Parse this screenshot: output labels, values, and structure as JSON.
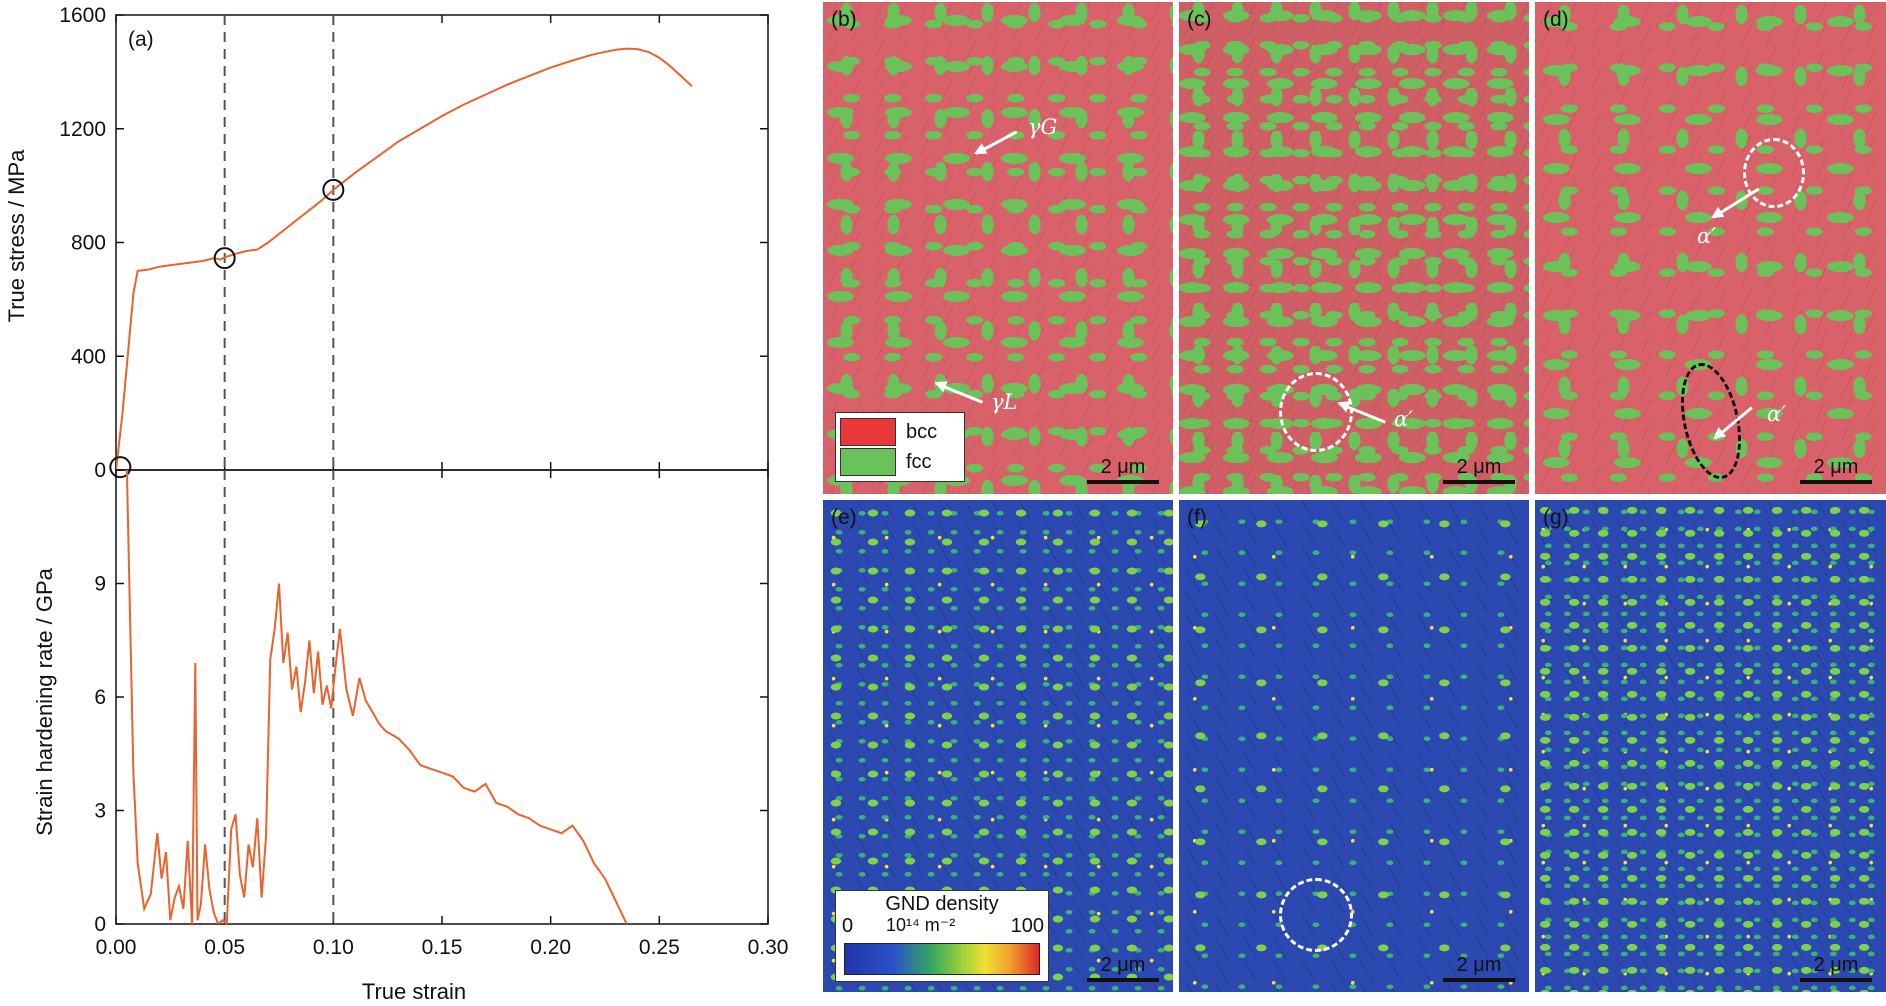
{
  "chart_data": [
    {
      "type": "line",
      "panel": "(a)",
      "ylabel": "True stress / MPa",
      "xlabel": "",
      "ylim": [
        0,
        1600
      ],
      "xlim": [
        0,
        0.3
      ],
      "yticks": [
        "0",
        "400",
        "800",
        "1200",
        "1600"
      ],
      "series": [
        {
          "x": [
            0.0,
            0.003,
            0.006,
            0.008,
            0.01,
            0.015,
            0.02,
            0.025,
            0.03,
            0.035,
            0.04,
            0.045,
            0.048,
            0.05,
            0.055,
            0.06,
            0.065,
            0.07,
            0.075,
            0.08,
            0.085,
            0.09,
            0.095,
            0.1,
            0.11,
            0.12,
            0.13,
            0.14,
            0.15,
            0.16,
            0.17,
            0.18,
            0.19,
            0.2,
            0.21,
            0.22,
            0.23,
            0.235,
            0.24,
            0.245,
            0.25,
            0.255,
            0.26,
            0.265
          ],
          "y": [
            0,
            200,
            450,
            620,
            700,
            705,
            715,
            720,
            725,
            730,
            735,
            745,
            740,
            748,
            760,
            770,
            775,
            800,
            830,
            860,
            890,
            920,
            950,
            985,
            1045,
            1100,
            1155,
            1200,
            1245,
            1285,
            1320,
            1355,
            1385,
            1415,
            1440,
            1462,
            1478,
            1482,
            1480,
            1470,
            1450,
            1420,
            1385,
            1350
          ]
        }
      ],
      "markers": [
        {
          "x": 0.002,
          "y": 10
        },
        {
          "x": 0.05,
          "y": 745
        },
        {
          "x": 0.1,
          "y": 985
        }
      ],
      "vlines": [
        0.05,
        0.1
      ]
    },
    {
      "type": "line",
      "ylabel": "Strain hardening rate / GPa",
      "xlabel": "True strain",
      "ylim": [
        0,
        12
      ],
      "xlim": [
        0,
        0.3
      ],
      "yticks": [
        "0",
        "3",
        "6",
        "9"
      ],
      "xticks": [
        "0.00",
        "0.05",
        "0.10",
        "0.15",
        "0.20",
        "0.25",
        "0.30"
      ],
      "series": [
        {
          "x": [
            0.005,
            0.008,
            0.01,
            0.013,
            0.016,
            0.019,
            0.021,
            0.023,
            0.025,
            0.027,
            0.029,
            0.031,
            0.033,
            0.035,
            0.0365,
            0.0375,
            0.039,
            0.041,
            0.043,
            0.045,
            0.047,
            0.049,
            0.051,
            0.053,
            0.055,
            0.057,
            0.059,
            0.061,
            0.063,
            0.065,
            0.067,
            0.069,
            0.071,
            0.073,
            0.075,
            0.077,
            0.079,
            0.081,
            0.083,
            0.085,
            0.087,
            0.089,
            0.091,
            0.093,
            0.095,
            0.097,
            0.099,
            0.101,
            0.103,
            0.106,
            0.109,
            0.112,
            0.115,
            0.118,
            0.121,
            0.124,
            0.127,
            0.13,
            0.135,
            0.14,
            0.145,
            0.15,
            0.155,
            0.16,
            0.165,
            0.17,
            0.175,
            0.18,
            0.185,
            0.19,
            0.195,
            0.2,
            0.205,
            0.21,
            0.215,
            0.22,
            0.225,
            0.23,
            0.235
          ],
          "y": [
            12.0,
            4.0,
            1.6,
            0.4,
            0.8,
            2.4,
            1.2,
            1.9,
            0.1,
            0.7,
            1.0,
            0.4,
            2.2,
            0.0,
            6.9,
            0.1,
            0.5,
            2.1,
            0.9,
            0.3,
            0.0,
            0.1,
            0.0,
            2.5,
            2.9,
            1.3,
            0.7,
            2.1,
            1.5,
            2.8,
            0.7,
            2.3,
            7.0,
            7.8,
            9.0,
            6.9,
            7.7,
            6.2,
            6.8,
            5.6,
            6.4,
            7.5,
            6.1,
            7.2,
            5.8,
            6.3,
            5.7,
            6.8,
            7.8,
            6.2,
            5.5,
            6.5,
            5.9,
            5.6,
            5.3,
            5.1,
            5.0,
            4.9,
            4.6,
            4.2,
            4.1,
            4.0,
            3.9,
            3.6,
            3.5,
            3.7,
            3.2,
            3.1,
            2.9,
            2.8,
            2.6,
            2.5,
            2.4,
            2.6,
            2.2,
            1.6,
            1.2,
            0.6,
            0.0
          ]
        }
      ],
      "vlines": [
        0.05,
        0.1
      ]
    }
  ],
  "phase_maps": [
    {
      "label": "(b)",
      "annotations": [
        "γG",
        "γL"
      ],
      "scale": "2 μm",
      "legend": [
        {
          "label": "bcc",
          "color": "#e8383a"
        },
        {
          "label": "fcc",
          "color": "#6cc25a"
        }
      ]
    },
    {
      "label": "(c)",
      "annotations": [
        "α′"
      ],
      "scale": "2 μm"
    },
    {
      "label": "(d)",
      "annotations": [
        "α′",
        "α′"
      ],
      "scale": "2 μm"
    }
  ],
  "gnd_maps": [
    {
      "label": "(e)",
      "scale": "2 μm",
      "colorbar": {
        "title": "GND density",
        "unit": "10¹⁴ m⁻²",
        "min": "0",
        "max": "100"
      }
    },
    {
      "label": "(f)",
      "scale": "2 μm"
    },
    {
      "label": "(g)",
      "scale": "2 μm"
    }
  ],
  "colors": {
    "curve": "#e8632e",
    "bcc": "#e8383a",
    "fcc": "#6cc25a"
  }
}
